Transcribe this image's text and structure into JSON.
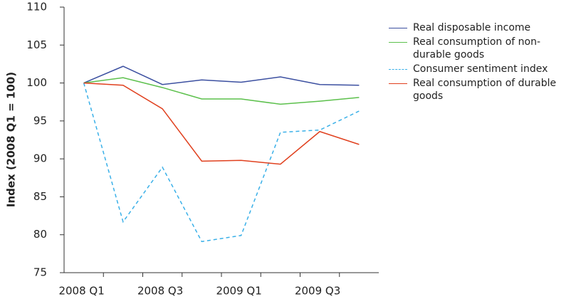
{
  "chart_data": {
    "type": "line",
    "y_label": "Index (2008 Q1 = 100)",
    "categories": [
      "2008 Q1",
      null,
      "2008 Q3",
      null,
      "2009 Q1",
      null,
      "2009 Q3",
      null
    ],
    "series": [
      {
        "name": "Real disposable income",
        "color": "#3b4fa0",
        "style": "solid",
        "values": [
          100,
          102.2,
          99.8,
          100.4,
          100.1,
          100.8,
          99.8,
          99.7
        ]
      },
      {
        "name": "Real consumption of non-durable goods",
        "color": "#5cc04c",
        "style": "solid",
        "values": [
          100,
          100.7,
          99.4,
          97.9,
          97.9,
          97.2,
          97.6,
          98.1
        ]
      },
      {
        "name": "Consumer sentiment index",
        "color": "#3ab0e8",
        "style": "dashed",
        "values": [
          100,
          81.7,
          88.9,
          79.1,
          79.9,
          93.5,
          93.8,
          96.3
        ]
      },
      {
        "name": "Real consumption of durable goods",
        "color": "#e0401e",
        "style": "solid",
        "values": [
          100,
          99.7,
          96.6,
          89.7,
          89.8,
          89.3,
          93.6,
          91.9
        ]
      }
    ],
    "ylim": [
      75,
      110
    ],
    "yticks": [
      75,
      80,
      85,
      90,
      95,
      100,
      105,
      110
    ],
    "grid": false
  }
}
